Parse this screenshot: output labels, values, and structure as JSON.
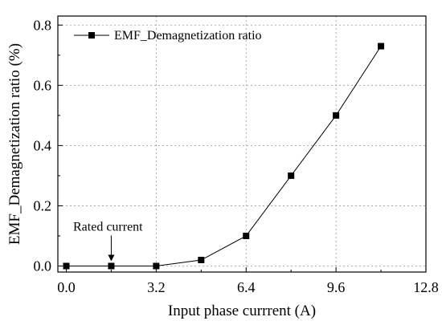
{
  "chart_data": {
    "type": "line",
    "title": "",
    "xlabel": "Input phase currrent (A)",
    "ylabel": "EMF_Demagnetization ratio (%)",
    "xlim": [
      -0.3,
      12.8
    ],
    "ylim": [
      -0.02,
      0.83
    ],
    "xticks": [
      0.0,
      3.2,
      6.4,
      9.6,
      12.8
    ],
    "xtick_labels": [
      "0.0",
      "3.2",
      "6.4",
      "9.6",
      "12.8"
    ],
    "yticks": [
      0.0,
      0.2,
      0.4,
      0.6,
      0.8
    ],
    "ytick_labels": [
      "0.0",
      "0.2",
      "0.4",
      "0.6",
      "0.8"
    ],
    "grid": true,
    "legend_position": "top-left",
    "series": [
      {
        "name": "EMF_Demagnetization ratio",
        "marker": "square",
        "color": "#000000",
        "x": [
          0.0,
          1.6,
          3.2,
          4.8,
          6.4,
          8.0,
          9.6,
          11.2
        ],
        "y": [
          0.0,
          0.0,
          0.0,
          0.02,
          0.1,
          0.3,
          0.5,
          0.73
        ]
      }
    ],
    "annotations": [
      {
        "text": "Rated current",
        "x": 1.6,
        "y": 0.0
      }
    ]
  }
}
